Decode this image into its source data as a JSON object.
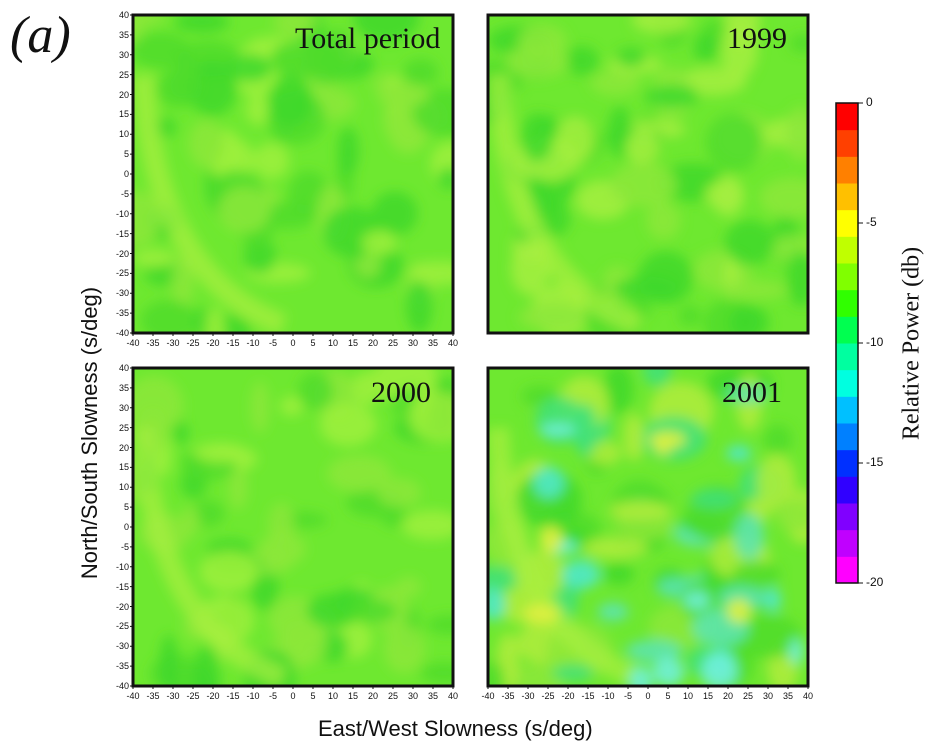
{
  "figure_label": "(a)",
  "xlabel": "East/West Slowness (s/deg)",
  "ylabel": "North/South Slowness (s/deg)",
  "colorbar": {
    "label": "Relative Power (db)",
    "ticks": [
      "0",
      "-5",
      "-10",
      "-15",
      "-20"
    ],
    "range": [
      -20,
      0
    ],
    "colors": [
      "#ff00ff",
      "#c000ff",
      "#8000ff",
      "#3000ff",
      "#0030ff",
      "#0080ff",
      "#00c0ff",
      "#00ffe0",
      "#00ffa0",
      "#00ff50",
      "#30ff00",
      "#80ff00",
      "#c0ff00",
      "#ffff00",
      "#ffc000",
      "#ff8000",
      "#ff4000",
      "#ff0000"
    ]
  },
  "chart_data": [
    {
      "type": "heatmap",
      "title": "Total period",
      "xlim": [
        -40,
        40
      ],
      "ylim": [
        -40,
        40
      ],
      "xticks": [
        -40,
        -35,
        -30,
        -25,
        -20,
        -15,
        -10,
        -5,
        0,
        5,
        10,
        15,
        20,
        25,
        30,
        35,
        40
      ],
      "yticks": [
        40,
        35,
        30,
        25,
        20,
        15,
        10,
        5,
        0,
        -5,
        -10,
        -15,
        -20,
        -25,
        -30,
        -35,
        -40
      ],
      "value_range_db": [
        -8,
        -5
      ],
      "dominant_db": -7
    },
    {
      "type": "heatmap",
      "title": "1999",
      "xlim": [
        -40,
        40
      ],
      "ylim": [
        -40,
        40
      ],
      "xticks": [],
      "yticks": [],
      "value_range_db": [
        -8,
        -4.5
      ],
      "dominant_db": -6.5
    },
    {
      "type": "heatmap",
      "title": "2000",
      "xlim": [
        -40,
        40
      ],
      "ylim": [
        -40,
        40
      ],
      "xticks": [
        -40,
        -35,
        -30,
        -25,
        -20,
        -15,
        -10,
        -5,
        0,
        5,
        10,
        15,
        20,
        25,
        30,
        35,
        40
      ],
      "yticks": [
        40,
        35,
        30,
        25,
        20,
        15,
        10,
        5,
        0,
        -5,
        -10,
        -15,
        -20,
        -25,
        -30,
        -35,
        -40
      ],
      "value_range_db": [
        -8,
        -5
      ],
      "dominant_db": -7
    },
    {
      "type": "heatmap",
      "title": "2001",
      "xlim": [
        -40,
        40
      ],
      "ylim": [
        -40,
        40
      ],
      "xticks": [
        -40,
        -35,
        -30,
        -25,
        -20,
        -15,
        -10,
        -5,
        0,
        5,
        10,
        15,
        20,
        25,
        30,
        35,
        40
      ],
      "yticks": [],
      "value_range_db": [
        -10,
        -4.5
      ],
      "dominant_db": -8
    }
  ]
}
